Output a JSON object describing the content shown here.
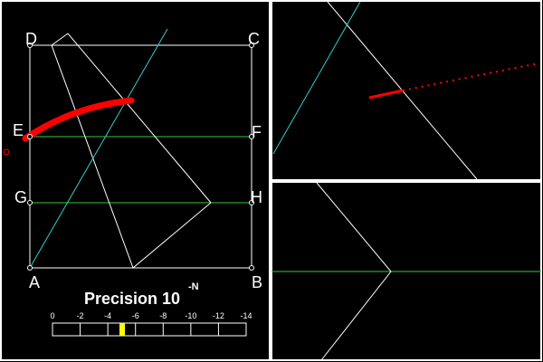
{
  "points": [
    {
      "label": "D"
    },
    {
      "label": "C"
    },
    {
      "label": "E"
    },
    {
      "label": "F"
    },
    {
      "label": "G"
    },
    {
      "label": "H"
    },
    {
      "label": "A"
    },
    {
      "label": "B"
    }
  ],
  "precision": {
    "label": "Precision 10",
    "exponent": "-N",
    "scale": [
      "0",
      "-2",
      "-4",
      "-6",
      "-8",
      "-10",
      "-12",
      "-14"
    ]
  }
}
